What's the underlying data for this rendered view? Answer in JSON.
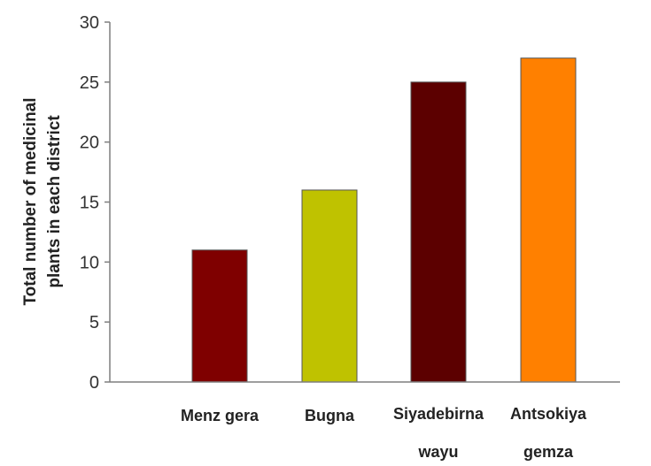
{
  "chart_data": {
    "type": "bar",
    "title": "",
    "xlabel": "",
    "ylabel_lines": [
      "Total number of medicinal",
      "plants in each district"
    ],
    "categories": [
      {
        "lines": [
          "Menz gera"
        ]
      },
      {
        "lines": [
          "Bugna"
        ]
      },
      {
        "lines": [
          "Siyadebirna",
          "wayu"
        ]
      },
      {
        "lines": [
          "Antsokiya",
          "gemza"
        ]
      }
    ],
    "values": [
      11,
      16,
      25,
      27
    ],
    "colors": [
      "#7f0000",
      "#bfc200",
      "#5c0000",
      "#ff8000"
    ],
    "ylim": [
      0,
      30
    ],
    "yticks": [
      "0",
      "5",
      "10",
      "15",
      "20",
      "25",
      "30"
    ],
    "grid": false,
    "legend": "none"
  }
}
